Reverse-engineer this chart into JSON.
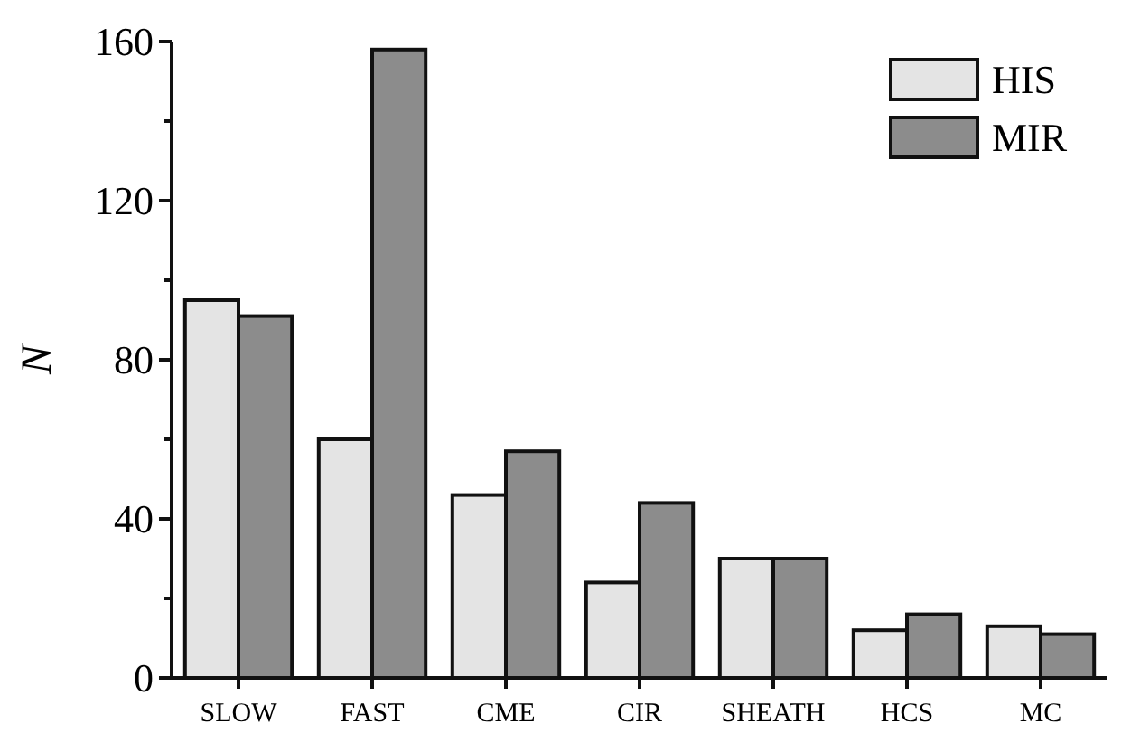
{
  "chart_data": {
    "type": "bar",
    "ylabel": "N",
    "categories": [
      "SLOW",
      "FAST",
      "CME",
      "CIR",
      "SHEATH",
      "HCS",
      "MC"
    ],
    "series": [
      {
        "name": "HIS",
        "color": "#e4e4e4",
        "values": [
          95,
          60,
          46,
          24,
          30,
          12,
          13
        ]
      },
      {
        "name": "MIR",
        "color": "#8c8c8c",
        "values": [
          91,
          158,
          57,
          44,
          30,
          16,
          11
        ]
      }
    ],
    "ylim": [
      0,
      160
    ],
    "yticks": [
      0,
      {
        "value": 20,
        "label": null
      },
      40,
      {
        "value": 60,
        "label": null
      },
      80,
      {
        "value": 100,
        "label": null
      },
      120,
      {
        "value": 140,
        "label": null
      },
      160
    ],
    "legend": "top right",
    "grid": false
  }
}
